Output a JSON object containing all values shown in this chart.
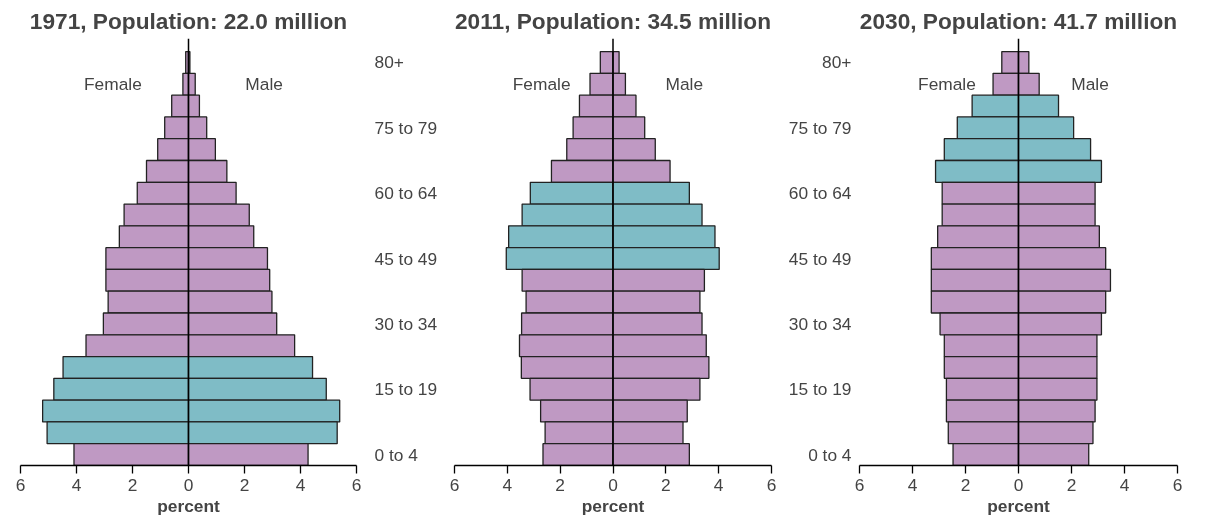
{
  "chart_data": [
    {
      "type": "bar",
      "orientation": "horizontal",
      "stacked": true,
      "title": "1971, Population: 22.0 million",
      "xlabel": "percent",
      "categories": [
        "80+",
        null,
        null,
        "75 to 79",
        null,
        null,
        "60 to 64",
        null,
        null,
        "45 to 49",
        null,
        null,
        "30 to 34",
        null,
        null,
        "15 to 19",
        null,
        null,
        "0 to 4"
      ],
      "series": [
        {
          "name": "Female",
          "colors": [
            "#bf99c3",
            "#bf99c3",
            "#bf99c3",
            "#bf99c3",
            "#bf99c3",
            "#bf99c3",
            "#bf99c3",
            "#bf99c3",
            "#bf99c3",
            "#bf99c3",
            "#bf99c3",
            "#bf99c3",
            "#bf99c3",
            "#bf99c3",
            "#7fbcc6",
            "#7fbcc6",
            "#7fbcc6",
            "#7fbcc6",
            "#bf99c3"
          ],
          "values": [
            -0.1,
            -0.2,
            -0.6,
            -0.85,
            -1.1,
            -1.5,
            -1.83,
            -2.3,
            -2.47,
            -2.95,
            -2.95,
            -2.87,
            -3.04,
            -3.66,
            -4.48,
            -4.81,
            -5.21,
            -5.05,
            -4.09
          ]
        },
        {
          "name": "Male",
          "colors": [
            "#bf99c3",
            "#bf99c3",
            "#bf99c3",
            "#bf99c3",
            "#bf99c3",
            "#bf99c3",
            "#bf99c3",
            "#bf99c3",
            "#bf99c3",
            "#bf99c3",
            "#bf99c3",
            "#bf99c3",
            "#bf99c3",
            "#bf99c3",
            "#7fbcc6",
            "#7fbcc6",
            "#7fbcc6",
            "#7fbcc6",
            "#bf99c3"
          ],
          "values": [
            0.05,
            0.24,
            0.39,
            0.65,
            0.96,
            1.37,
            1.7,
            2.17,
            2.33,
            2.82,
            2.9,
            2.98,
            3.15,
            3.79,
            4.43,
            4.92,
            5.4,
            5.31,
            4.27
          ]
        }
      ],
      "xlim": [
        -6,
        6
      ],
      "xticks": [
        {
          "value": -6,
          "label": "6"
        },
        {
          "value": -4,
          "label": "4"
        },
        {
          "value": -2,
          "label": "2"
        },
        0,
        2,
        4,
        6
      ],
      "ref_lines": [
        {
          "axis": "x",
          "value": 0
        }
      ]
    },
    {
      "type": "bar",
      "orientation": "horizontal",
      "stacked": true,
      "title": "2011, Population: 34.5 million",
      "xlabel": "percent",
      "categories": [
        null,
        null,
        null,
        null,
        null,
        null,
        null,
        null,
        null,
        null,
        null,
        null,
        null,
        null,
        null,
        null,
        null,
        null,
        null
      ],
      "series": [
        {
          "name": "Female",
          "colors": [
            "#bf99c3",
            "#bf99c3",
            "#bf99c3",
            "#bf99c3",
            "#bf99c3",
            "#bf99c3",
            "#7fbcc6",
            "#7fbcc6",
            "#7fbcc6",
            "#7fbcc6",
            "#bf99c3",
            "#bf99c3",
            "#bf99c3",
            "#bf99c3",
            "#bf99c3",
            "#bf99c3",
            "#bf99c3",
            "#bf99c3",
            "#bf99c3"
          ],
          "values": [
            -0.48,
            -0.87,
            -1.27,
            -1.51,
            -1.75,
            -2.33,
            -3.13,
            -3.44,
            -3.95,
            -4.04,
            -3.44,
            -3.29,
            -3.46,
            -3.54,
            -3.47,
            -3.14,
            -2.74,
            -2.57,
            -2.65
          ]
        },
        {
          "name": "Male",
          "colors": [
            "#bf99c3",
            "#bf99c3",
            "#bf99c3",
            "#bf99c3",
            "#bf99c3",
            "#bf99c3",
            "#7fbcc6",
            "#7fbcc6",
            "#7fbcc6",
            "#7fbcc6",
            "#bf99c3",
            "#bf99c3",
            "#bf99c3",
            "#bf99c3",
            "#bf99c3",
            "#bf99c3",
            "#bf99c3",
            "#bf99c3",
            "#bf99c3"
          ],
          "values": [
            0.23,
            0.47,
            0.87,
            1.2,
            1.6,
            2.16,
            2.89,
            3.37,
            3.86,
            4.02,
            3.46,
            3.29,
            3.37,
            3.53,
            3.63,
            3.29,
            2.81,
            2.65,
            2.89
          ]
        }
      ],
      "xlim": [
        -6,
        6
      ],
      "xticks": [
        {
          "value": -6,
          "label": "6"
        },
        {
          "value": -4,
          "label": "4"
        },
        {
          "value": -2,
          "label": "2"
        },
        0,
        2,
        4,
        6
      ],
      "ref_lines": [
        {
          "axis": "x",
          "value": 0
        }
      ]
    },
    {
      "type": "bar",
      "orientation": "horizontal",
      "stacked": true,
      "title": "2030, Population: 41.7 million",
      "xlabel": "percent",
      "categories": [
        "80+",
        null,
        null,
        "75 to 79",
        null,
        null,
        "60 to 64",
        null,
        null,
        "45 to 49",
        null,
        null,
        "30 to 34",
        null,
        null,
        "15 to 19",
        null,
        null,
        "0 to 4"
      ],
      "series": [
        {
          "name": "Female",
          "colors": [
            "#bf99c3",
            "#bf99c3",
            "#7fbcc6",
            "#7fbcc6",
            "#7fbcc6",
            "#7fbcc6",
            "#bf99c3",
            "#bf99c3",
            "#bf99c3",
            "#bf99c3",
            "#bf99c3",
            "#bf99c3",
            "#bf99c3",
            "#bf99c3",
            "#bf99c3",
            "#bf99c3",
            "#bf99c3",
            "#bf99c3",
            "#bf99c3"
          ],
          "values": [
            -0.63,
            -0.96,
            -1.75,
            -2.31,
            -2.8,
            -3.13,
            -2.88,
            -2.88,
            -3.05,
            -3.29,
            -3.29,
            -3.29,
            -2.96,
            -2.8,
            -2.8,
            -2.72,
            -2.72,
            -2.65,
            -2.47
          ]
        },
        {
          "name": "Male",
          "colors": [
            "#bf99c3",
            "#bf99c3",
            "#7fbcc6",
            "#7fbcc6",
            "#7fbcc6",
            "#7fbcc6",
            "#bf99c3",
            "#bf99c3",
            "#bf99c3",
            "#bf99c3",
            "#bf99c3",
            "#bf99c3",
            "#bf99c3",
            "#bf99c3",
            "#bf99c3",
            "#bf99c3",
            "#bf99c3",
            "#bf99c3",
            "#bf99c3"
          ],
          "values": [
            0.39,
            0.78,
            1.51,
            2.08,
            2.72,
            3.13,
            2.89,
            2.89,
            3.05,
            3.29,
            3.47,
            3.29,
            3.13,
            2.96,
            2.96,
            2.96,
            2.89,
            2.81,
            2.65
          ]
        }
      ],
      "xlim": [
        -6,
        6
      ],
      "xticks": [
        {
          "value": -6,
          "label": "6"
        },
        {
          "value": -4,
          "label": "4"
        },
        {
          "value": -2,
          "label": "2"
        },
        0,
        2,
        4,
        6
      ],
      "ref_lines": [
        {
          "axis": "x",
          "value": 0
        }
      ]
    }
  ]
}
